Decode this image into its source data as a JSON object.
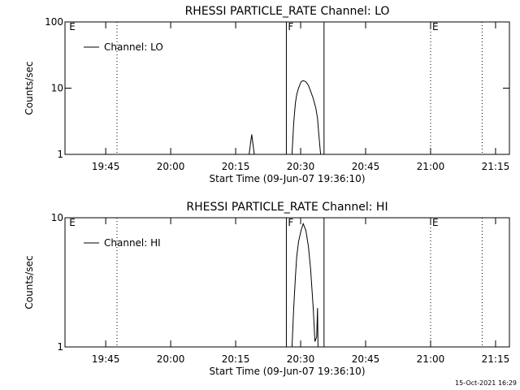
{
  "footer": "15-Oct-2021 16:29",
  "chart_data": [
    {
      "type": "line",
      "title": "RHESSI PARTICLE_RATE Channel: LO",
      "xlabel": "Start Time (09-Jun-07 19:36:10)",
      "ylabel": "Counts/sec",
      "log_y": true,
      "ylim": [
        1,
        100
      ],
      "yticks": [
        1,
        10,
        100
      ],
      "xlim": [
        1175.6,
        1278.2
      ],
      "xticks": [
        {
          "value": 1185,
          "label": "19:45"
        },
        {
          "value": 1200,
          "label": "20:00"
        },
        {
          "value": 1215,
          "label": "20:15"
        },
        {
          "value": 1230,
          "label": "20:30"
        },
        {
          "value": 1245,
          "label": "20:45"
        },
        {
          "value": 1260,
          "label": "21:00"
        },
        {
          "value": 1275,
          "label": "21:15"
        }
      ],
      "legend": "upper left",
      "vlines": [
        {
          "x": 1187.6,
          "style": "dotted"
        },
        {
          "x": 1226.7,
          "style": "solid"
        },
        {
          "x": 1235.4,
          "style": "solid"
        },
        {
          "x": 1260,
          "style": "dotted"
        },
        {
          "x": 1271.9,
          "style": "dotted"
        }
      ],
      "markers": [
        {
          "x": 1176.2,
          "label": "E"
        },
        {
          "x": 1226.7,
          "label": "F"
        },
        {
          "x": 1260,
          "label": "E"
        }
      ],
      "series": [
        {
          "name": "Channel: LO",
          "color": "#000000",
          "x": [
            1218.1,
            1218.7,
            1219.3,
            null,
            1228.0,
            1228.4,
            1228.8,
            1229.1,
            1229.5,
            1230.1,
            1230.6,
            1231.2,
            1231.8,
            1232.3,
            1232.9,
            1233.5,
            1233.9,
            1234.2,
            1234.6
          ],
          "values": [
            1,
            2,
            1,
            null,
            1,
            3,
            6,
            8,
            10,
            12.5,
            13,
            12.5,
            11,
            9,
            7,
            5,
            3.5,
            2,
            1
          ]
        }
      ]
    },
    {
      "type": "line",
      "title": "RHESSI PARTICLE_RATE Channel: HI",
      "xlabel": "Start Time (09-Jun-07 19:36:10)",
      "ylabel": "Counts/sec",
      "log_y": true,
      "ylim": [
        1,
        10
      ],
      "yticks": [
        1,
        10
      ],
      "xlim": [
        1175.6,
        1278.2
      ],
      "xticks": [
        {
          "value": 1185,
          "label": "19:45"
        },
        {
          "value": 1200,
          "label": "20:00"
        },
        {
          "value": 1215,
          "label": "20:15"
        },
        {
          "value": 1230,
          "label": "20:30"
        },
        {
          "value": 1245,
          "label": "20:45"
        },
        {
          "value": 1260,
          "label": "21:00"
        },
        {
          "value": 1275,
          "label": "21:15"
        }
      ],
      "legend": "upper left",
      "vlines": [
        {
          "x": 1187.6,
          "style": "dotted"
        },
        {
          "x": 1226.7,
          "style": "solid"
        },
        {
          "x": 1235.4,
          "style": "solid"
        },
        {
          "x": 1260,
          "style": "dotted"
        },
        {
          "x": 1271.9,
          "style": "dotted"
        }
      ],
      "markers": [
        {
          "x": 1176.2,
          "label": "E"
        },
        {
          "x": 1226.7,
          "label": "F"
        },
        {
          "x": 1260,
          "label": "E"
        }
      ],
      "series": [
        {
          "name": "Channel: HI",
          "color": "#000000",
          "x": [
            1228.0,
            1228.4,
            1228.8,
            1229.1,
            1229.5,
            1230.1,
            1230.6,
            1231.2,
            1231.8,
            1232.3,
            1232.9,
            1233.3,
            1233.7,
            1233.9,
            1234.0
          ],
          "values": [
            1,
            2,
            3.5,
            5,
            6.5,
            8,
            9,
            8,
            6,
            4,
            2,
            1.1,
            1.2,
            2,
            1
          ]
        }
      ]
    }
  ]
}
